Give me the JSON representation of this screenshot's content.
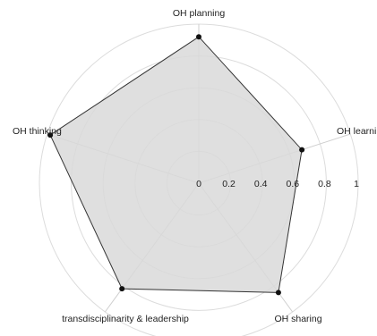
{
  "chart_data": {
    "type": "radar",
    "title": "",
    "axes": [
      "OH planning",
      "OH learni",
      "OH sharing",
      "transdisciplinarity & leadership",
      "OH thinking"
    ],
    "values": [
      0.92,
      0.68,
      0.85,
      0.82,
      0.98
    ],
    "rlim": [
      0,
      1
    ],
    "rticks": [
      "0",
      "0.2",
      "0.4",
      "0.6",
      "0.8",
      "1"
    ],
    "grid": true,
    "legend": "none",
    "colors": {
      "fill": "#d9d9d9",
      "line": "#333333",
      "marker": "#111111",
      "grid": "#dcdcdc",
      "axis": "#cfcfcf"
    }
  }
}
